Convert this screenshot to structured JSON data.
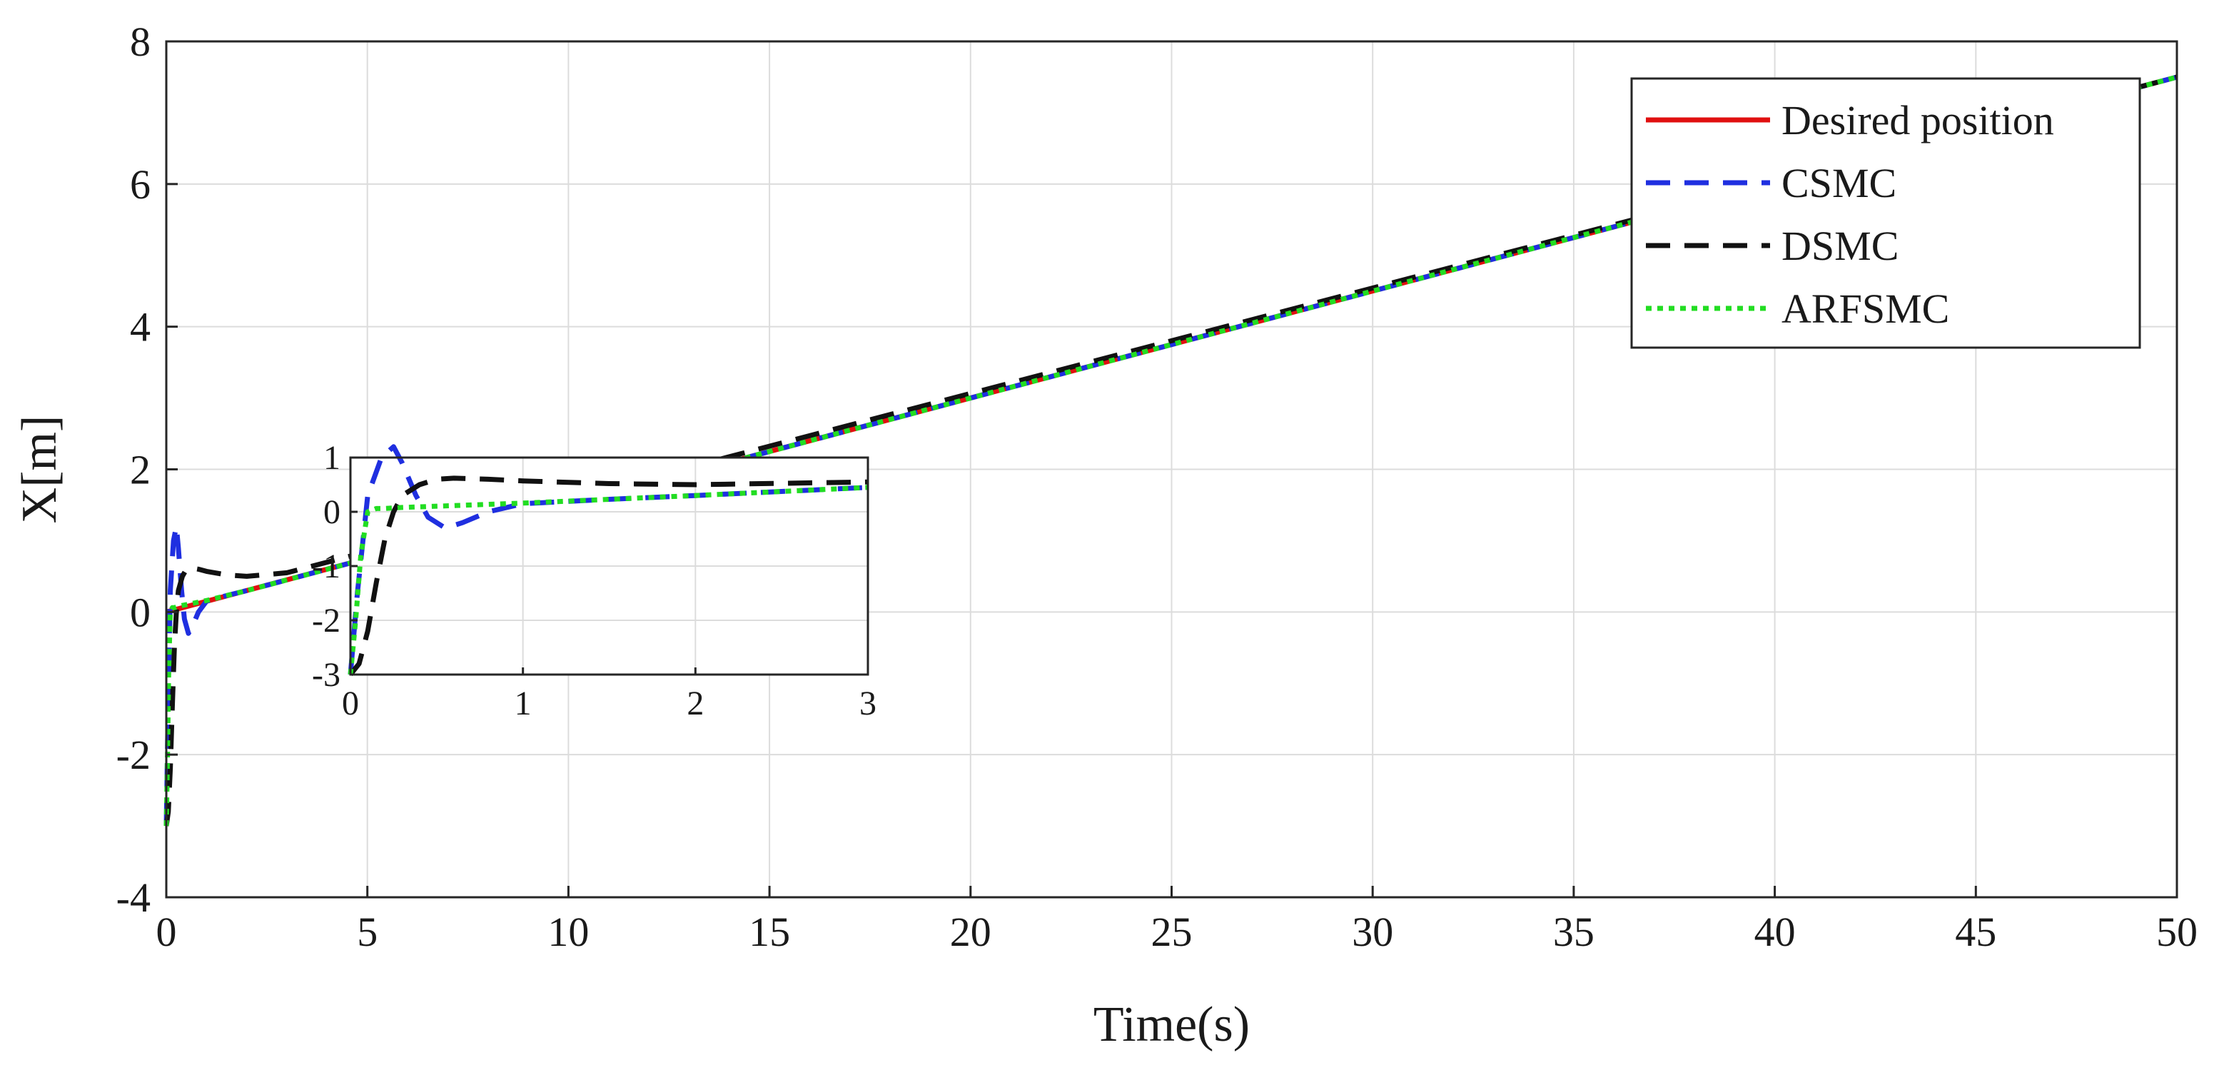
{
  "chart_data": {
    "type": "line",
    "title": "",
    "xlabel": "Time(s)",
    "ylabel": "X[m]",
    "xlim": [
      0,
      50
    ],
    "ylim": [
      -4,
      8
    ],
    "xticks": [
      "0",
      "5",
      "10",
      "15",
      "20",
      "25",
      "30",
      "35",
      "40",
      "45",
      "50"
    ],
    "yticks": [
      "-4",
      "-2",
      "0",
      "2",
      "4",
      "6",
      "8"
    ],
    "grid": true,
    "legend_position": "top-right",
    "series": [
      {
        "name": "Desired position",
        "color": "#e01010",
        "style": "solid",
        "x": [
          0,
          50
        ],
        "y": [
          0,
          7.5
        ]
      },
      {
        "name": "CSMC",
        "color": "#1f2fe0",
        "style": "dashed",
        "x": [
          0,
          0.04,
          0.1,
          0.18,
          0.25,
          0.3,
          0.38,
          0.45,
          0.55,
          0.65,
          0.8,
          1.0,
          1.5,
          2,
          3,
          50
        ],
        "y": [
          -3,
          -1.5,
          0.3,
          1.0,
          1.2,
          0.9,
          0.3,
          -0.1,
          -0.3,
          -0.2,
          0.0,
          0.15,
          0.23,
          0.3,
          0.45,
          7.5
        ]
      },
      {
        "name": "DSMC",
        "color": "#111111",
        "style": "dashed",
        "x": [
          0,
          0.05,
          0.1,
          0.15,
          0.2,
          0.25,
          0.3,
          0.4,
          0.5,
          0.6,
          0.8,
          1.0,
          1.5,
          2,
          3,
          50
        ],
        "y": [
          -3,
          -2.8,
          -2.2,
          -1.3,
          -0.5,
          0.0,
          0.3,
          0.5,
          0.6,
          0.62,
          0.6,
          0.57,
          0.52,
          0.5,
          0.55,
          7.5
        ]
      },
      {
        "name": "ARFSMC",
        "color": "#22dd22",
        "style": "dotted",
        "x": [
          0,
          0.03,
          0.06,
          0.1,
          0.15,
          0.2,
          0.3,
          1,
          2,
          3,
          50
        ],
        "y": [
          -3,
          -2.0,
          -0.8,
          0.0,
          0.06,
          0.06,
          0.08,
          0.16,
          0.3,
          0.45,
          7.5
        ]
      }
    ],
    "inset": {
      "xlim": [
        0,
        3
      ],
      "ylim": [
        -3,
        1
      ],
      "xticks": [
        "0",
        "1",
        "2",
        "3"
      ],
      "yticks": [
        "1",
        "0",
        "-1",
        "-2",
        "-3"
      ]
    }
  }
}
